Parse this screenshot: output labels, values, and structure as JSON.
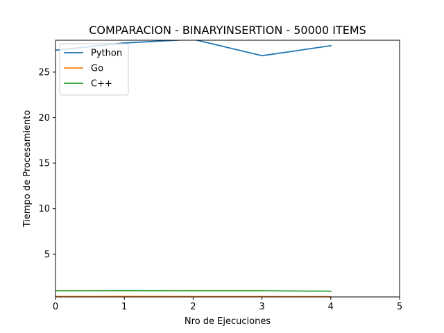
{
  "chart_data": {
    "type": "line",
    "title": "COMPARACION - BINARYINSERTION - 50000 ITEMS",
    "xlabel": "Nro de Ejecuciones",
    "ylabel": "Tiempo de Procesamiento",
    "xlim": [
      0,
      5
    ],
    "ylim": [
      0.3,
      28.5
    ],
    "xticks": [
      0,
      1,
      2,
      3,
      4,
      5
    ],
    "yticks": [
      5,
      10,
      15,
      20,
      25
    ],
    "grid": false,
    "legend_position": "top-left",
    "series": [
      {
        "name": "Python",
        "color": "#1f77b4",
        "x": [
          0,
          1,
          2,
          3,
          4
        ],
        "values": [
          27.4,
          28.2,
          28.6,
          26.8,
          27.9
        ]
      },
      {
        "name": "Go",
        "color": "#ff7f0e",
        "x": [
          0,
          1,
          2,
          3,
          4
        ],
        "values": [
          0.35,
          0.35,
          0.34,
          0.34,
          0.33
        ]
      },
      {
        "name": "C++",
        "color": "#2ca02c",
        "x": [
          0,
          1,
          2,
          3,
          4
        ],
        "values": [
          0.98,
          0.99,
          0.98,
          0.98,
          0.93
        ]
      }
    ]
  }
}
